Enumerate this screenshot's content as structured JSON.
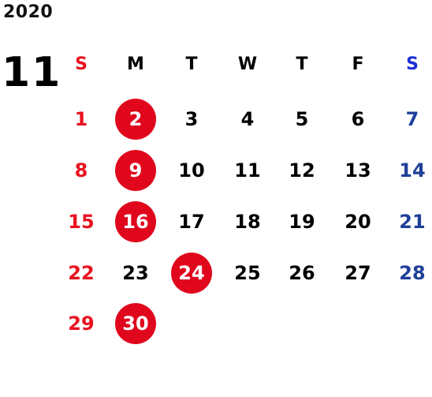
{
  "year": "2020",
  "month": "11",
  "colors": {
    "sunday": "#e8121e",
    "saturday_header": "#1a2fd6",
    "saturday": "#1f3f98",
    "weekday": "#000000",
    "highlight": "#e0071d"
  },
  "weekdays": [
    "S",
    "M",
    "T",
    "W",
    "T",
    "F",
    "S"
  ],
  "weeks": [
    [
      "1",
      "2",
      "3",
      "4",
      "5",
      "6",
      "7"
    ],
    [
      "8",
      "9",
      "10",
      "11",
      "12",
      "13",
      "14"
    ],
    [
      "15",
      "16",
      "17",
      "18",
      "19",
      "20",
      "21"
    ],
    [
      "22",
      "23",
      "24",
      "25",
      "26",
      "27",
      "28"
    ],
    [
      "29",
      "30",
      "",
      "",
      "",
      "",
      ""
    ]
  ],
  "highlighted_days": [
    "2",
    "9",
    "16",
    "24",
    "30"
  ]
}
